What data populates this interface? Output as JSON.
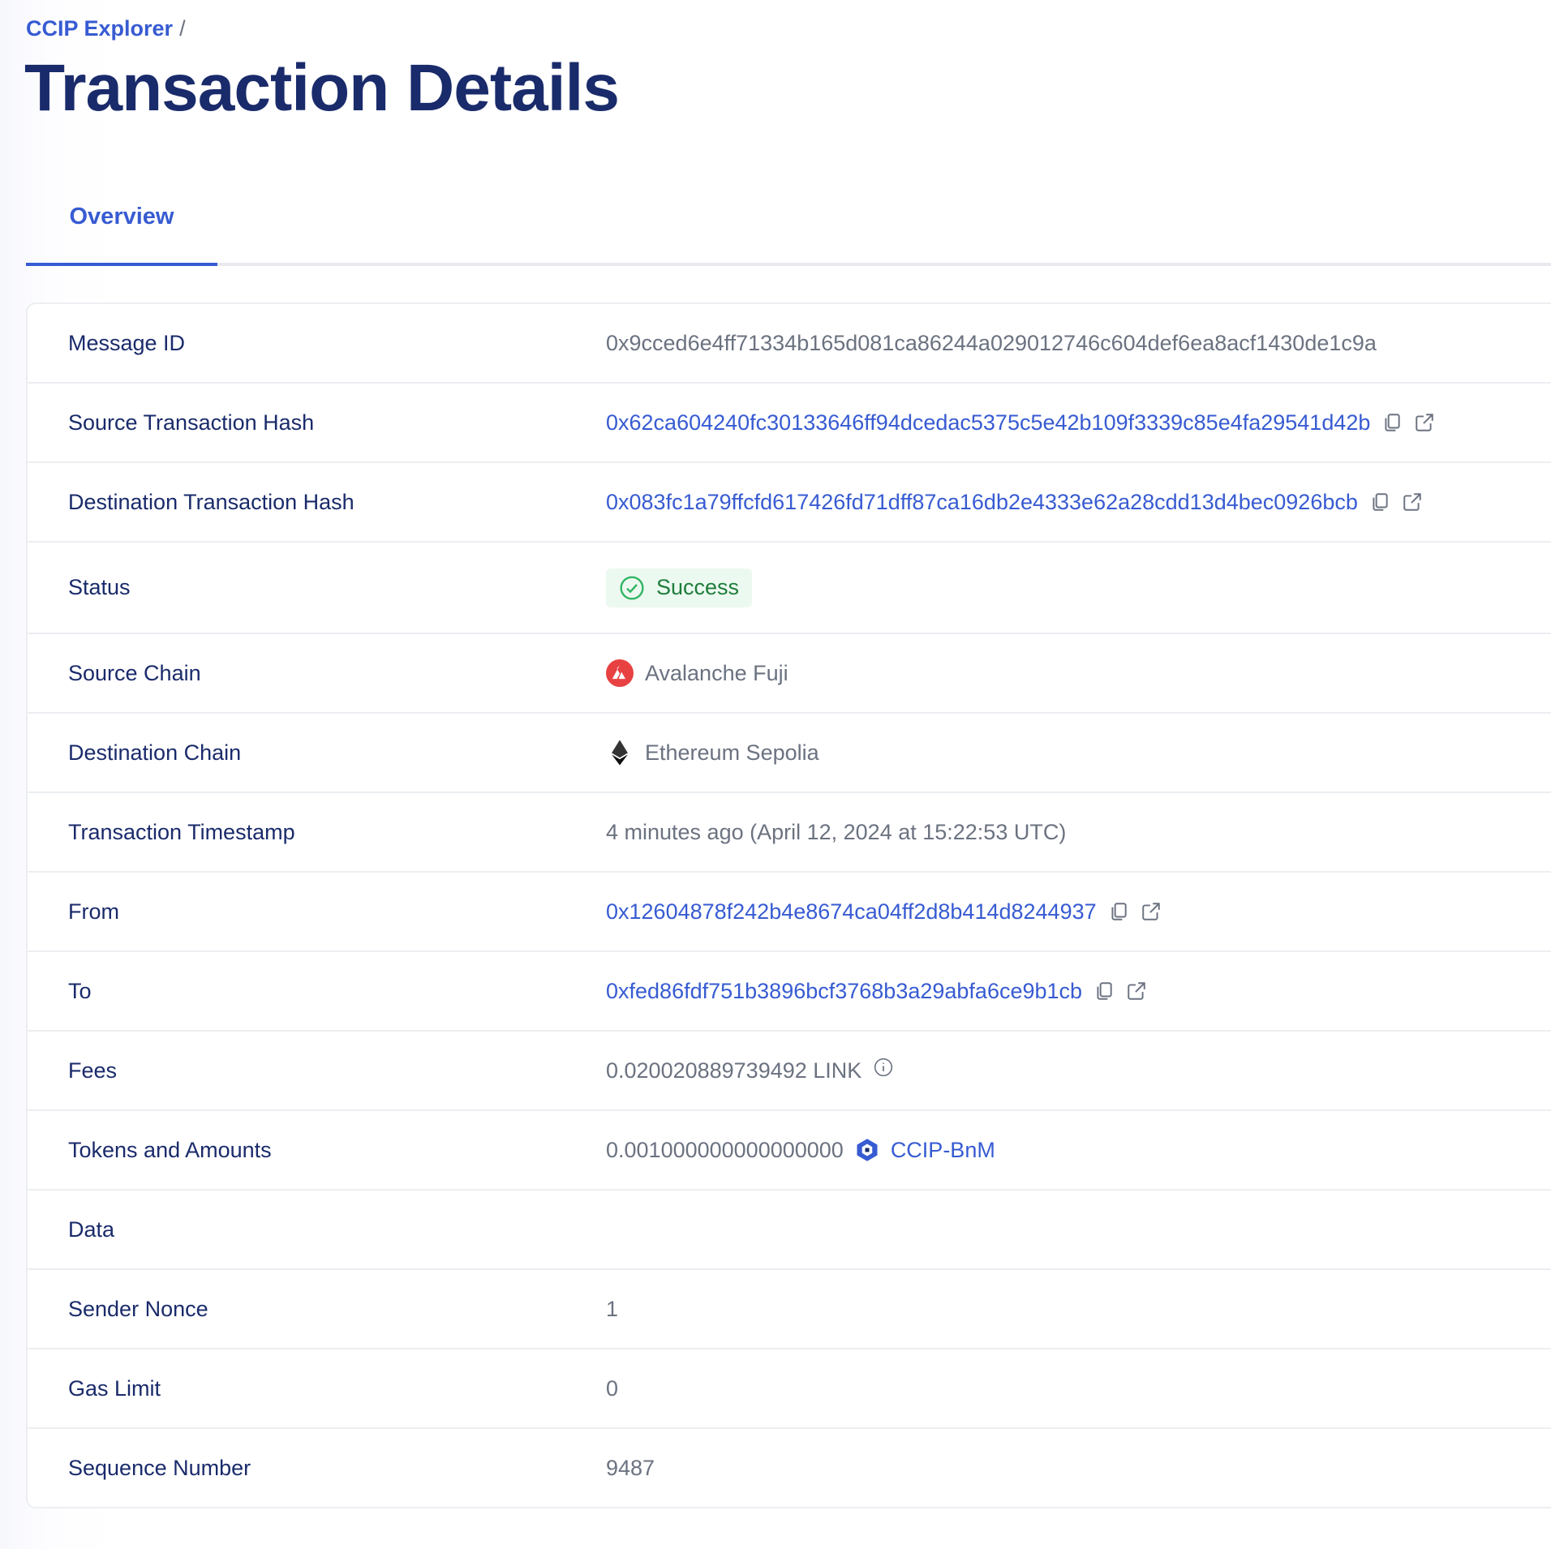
{
  "breadcrumb": {
    "root": "CCIP Explorer",
    "separator": "/"
  },
  "page_title": "Transaction Details",
  "tabs": [
    {
      "label": "Overview",
      "active": true
    }
  ],
  "colors": {
    "accent": "#375bd2",
    "title": "#1a2b6b",
    "success": "#1e7d3b",
    "avalanche": "#e84142"
  },
  "details": {
    "message_id": {
      "label": "Message ID",
      "value": "0x9cced6e4ff71334b165d081ca86244a029012746c604def6ea8acf1430de1c9a"
    },
    "source_tx": {
      "label": "Source Transaction Hash",
      "value": "0x62ca604240fc30133646ff94dcedac5375c5e42b109f3339c85e4fa29541d42b"
    },
    "dest_tx": {
      "label": "Destination Transaction Hash",
      "value": "0x083fc1a79ffcfd617426fd71dff87ca16db2e4333e62a28cdd13d4bec0926bcb"
    },
    "status": {
      "label": "Status",
      "value": "Success",
      "icon": "check-circle-icon"
    },
    "source_chain": {
      "label": "Source Chain",
      "value": "Avalanche Fuji",
      "icon": "avalanche-icon"
    },
    "dest_chain": {
      "label": "Destination Chain",
      "value": "Ethereum Sepolia",
      "icon": "ethereum-icon"
    },
    "timestamp": {
      "label": "Transaction Timestamp",
      "value": "4 minutes ago (April 12, 2024 at 15:22:53 UTC)"
    },
    "from": {
      "label": "From",
      "value": "0x12604878f242b4e8674ca04ff2d8b414d8244937"
    },
    "to": {
      "label": "To",
      "value": "0xfed86fdf751b3896bcf3768b3a29abfa6ce9b1cb"
    },
    "fees": {
      "label": "Fees",
      "value": "0.020020889739492 LINK",
      "icon": "info-icon"
    },
    "tokens": {
      "label": "Tokens and Amounts",
      "amount": "0.001000000000000000",
      "token": "CCIP-BnM"
    },
    "data": {
      "label": "Data",
      "value": ""
    },
    "nonce": {
      "label": "Sender Nonce",
      "value": "1"
    },
    "gas_limit": {
      "label": "Gas Limit",
      "value": "0"
    },
    "sequence": {
      "label": "Sequence Number",
      "value": "9487"
    }
  }
}
